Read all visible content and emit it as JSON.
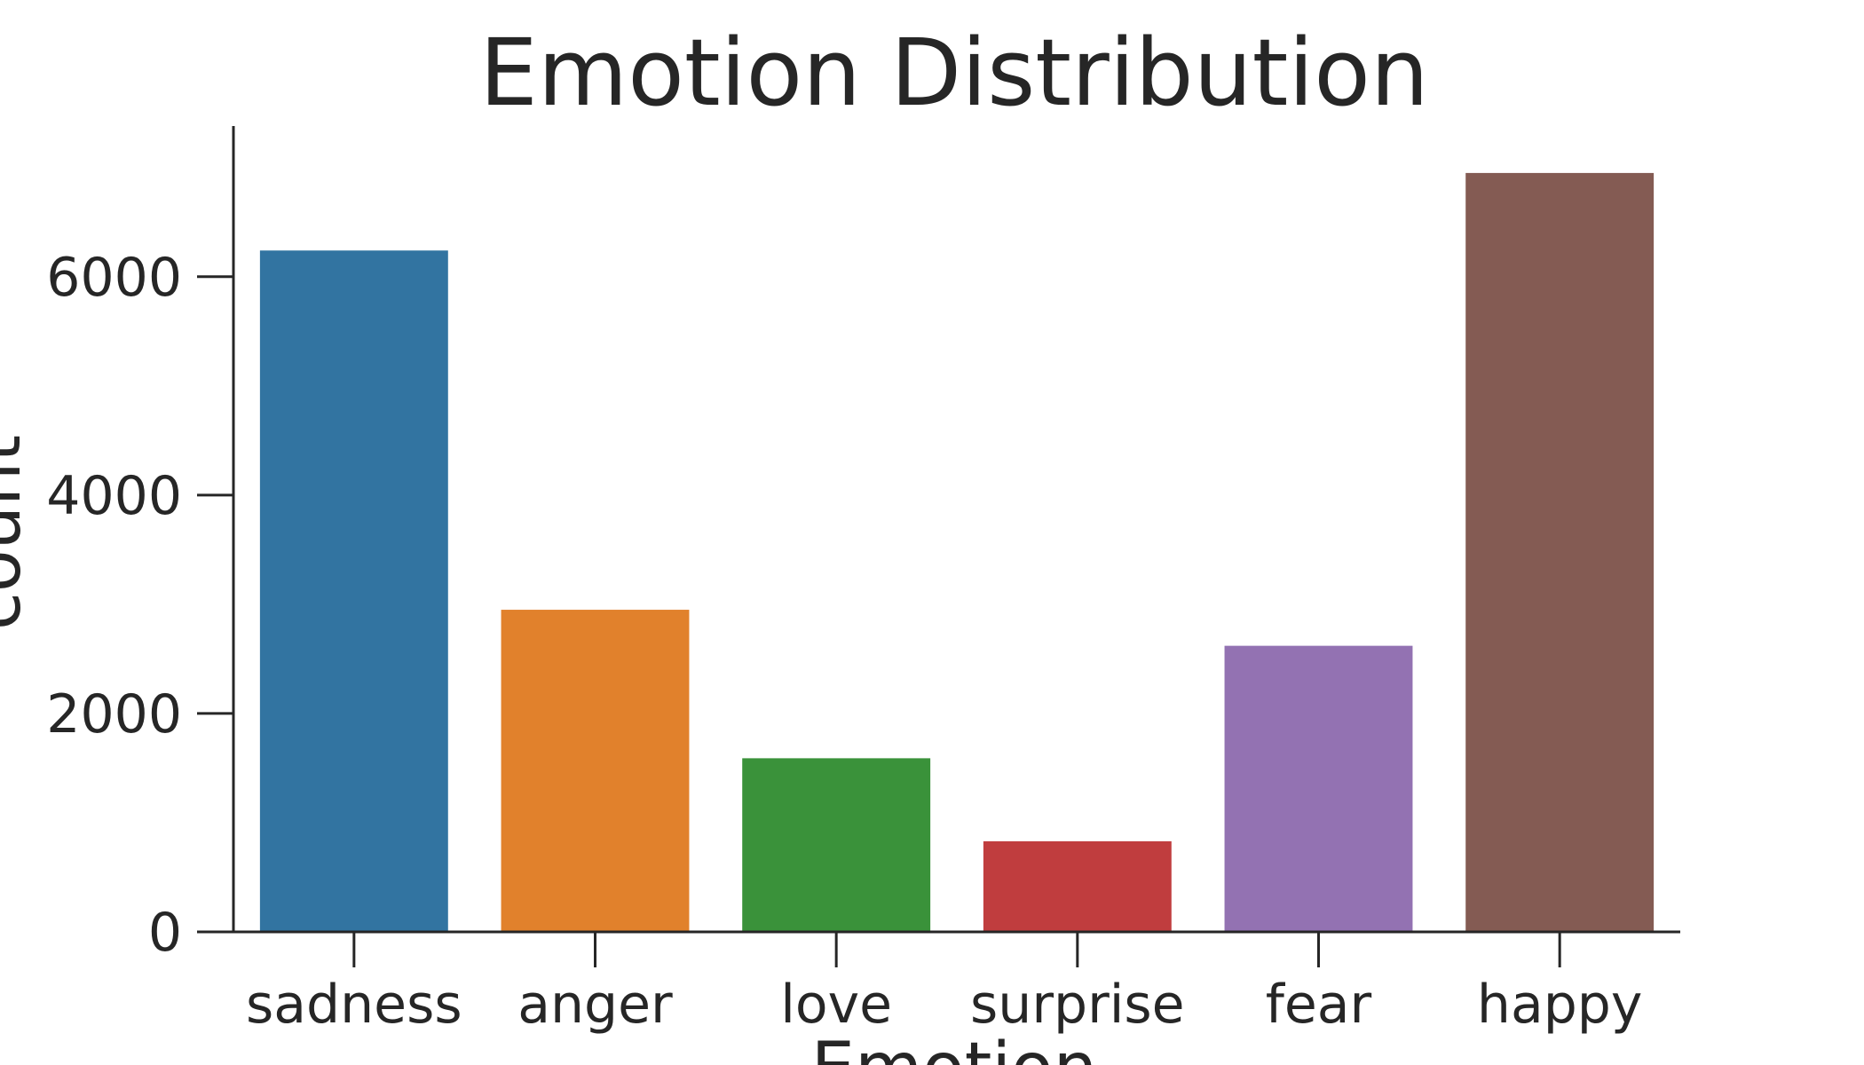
{
  "chart_data": {
    "type": "bar",
    "title": "Emotion Distribution",
    "xlabel": "Emotion",
    "ylabel": "count",
    "categories": [
      "sadness",
      "anger",
      "love",
      "surprise",
      "fear",
      "happy"
    ],
    "values": [
      6240,
      2950,
      1590,
      830,
      2620,
      6950
    ],
    "colors": [
      "#3274a1",
      "#e1812c",
      "#3a923a",
      "#c03d3e",
      "#9372b2",
      "#845b53"
    ],
    "ylim": [
      0,
      7380
    ],
    "yticks": [
      0,
      2000,
      4000,
      6000
    ],
    "grid": false,
    "legend": "none"
  }
}
